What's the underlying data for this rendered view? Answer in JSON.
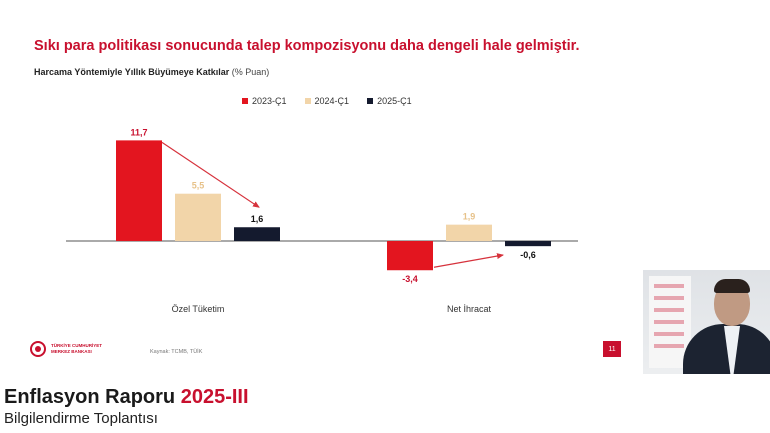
{
  "slide": {
    "headline": "Sıkı para politikası sonucunda talep kompozisyonu daha dengeli hale gelmiştir.",
    "subtitle": "Harcama Yöntemiyle Yıllık Büyümeye Katkılar",
    "subtitle_unit": "(% Puan)",
    "source": "Kaynak: TCMB, TÜİK",
    "page_number": "11",
    "logo_line1": "TÜRKİYE CUMHURİYET",
    "logo_line2": "MERKEZ BANKASI"
  },
  "lower_third": {
    "title_main": "Enflasyon Raporu",
    "title_accent": "2025-III",
    "subtitle": "Bilgilendirme Toplantısı"
  },
  "colors": {
    "brand_red": "#c8102e",
    "series_2023": "#e3151f",
    "series_2024": "#f2d5a9",
    "series_2025": "#141a2e",
    "arrow": "#d6323c"
  },
  "chart_data": {
    "type": "bar",
    "categories": [
      "Özel Tüketim",
      "Net İhracat"
    ],
    "series": [
      {
        "name": "2023-Ç1",
        "values": [
          11.7,
          -3.4
        ],
        "labels": [
          "11,7",
          "-3,4"
        ],
        "color": "#e3151f",
        "label_color": "#c8102e"
      },
      {
        "name": "2024-Ç1",
        "values": [
          5.5,
          1.9
        ],
        "labels": [
          "5,5",
          "1,9"
        ],
        "color": "#f2d5a9",
        "label_color": "#e7c28a"
      },
      {
        "name": "2025-Ç1",
        "values": [
          1.6,
          -0.6
        ],
        "labels": [
          "1,6",
          "-0,6"
        ],
        "color": "#141a2e",
        "label_color": "#111111"
      }
    ],
    "arrows": [
      {
        "category": 0,
        "from_series": 0,
        "to_series": 2
      },
      {
        "category": 1,
        "from_series": 0,
        "to_series": 2
      }
    ],
    "legend_position": "top",
    "grid": false
  }
}
